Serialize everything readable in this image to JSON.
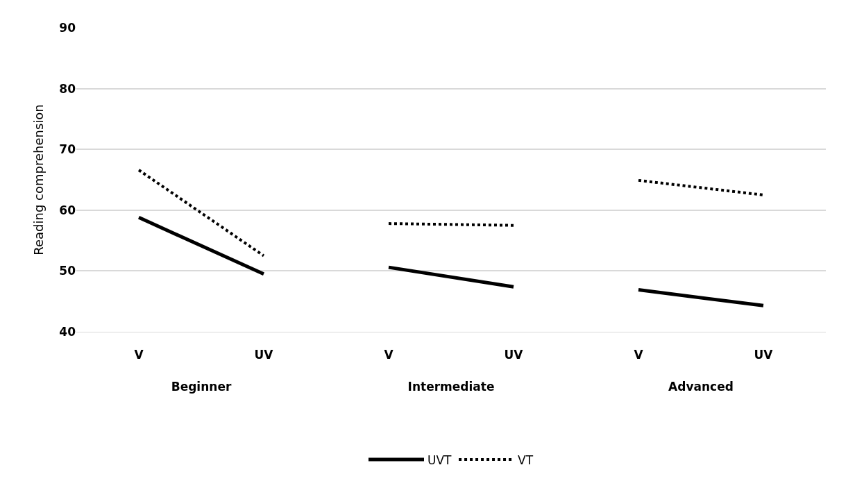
{
  "chart_data": [
    {
      "type": "line",
      "xlabel": "Beginner",
      "ylabel": "Reading comprehension",
      "categories": [
        "V",
        "UV"
      ],
      "ylim": [
        40,
        90
      ],
      "yticks": [
        40,
        50,
        60,
        70,
        80,
        90
      ],
      "grid": "y",
      "legend": "bottom",
      "marker": "none",
      "series": [
        {
          "name": "UVT",
          "color": "#000000",
          "line_style": "solid",
          "values": [
            58.8,
            49.5
          ]
        },
        {
          "name": "VT",
          "color": "#000000",
          "line_style": "dotted",
          "values": [
            66.6,
            52.5
          ]
        }
      ]
    },
    {
      "type": "line",
      "xlabel": "Intermediate",
      "categories": [
        "V",
        "UV"
      ],
      "ylim": [
        40,
        90
      ],
      "yticks": [
        40,
        50,
        60,
        70,
        80,
        90
      ],
      "grid": "y",
      "tick_labels": "x",
      "marker": "none",
      "series": [
        {
          "name": "UVT",
          "color": "#000000",
          "line_style": "solid",
          "values": [
            50.6,
            47.4
          ]
        },
        {
          "name": "VT",
          "color": "#000000",
          "line_style": "dotted",
          "values": [
            57.8,
            57.5
          ]
        }
      ]
    },
    {
      "type": "line",
      "xlabel": "Advanced",
      "categories": [
        "V",
        "UV"
      ],
      "ylim": [
        40,
        90
      ],
      "yticks": [
        40,
        50,
        60,
        70,
        80,
        90
      ],
      "grid": "y",
      "tick_labels": "x",
      "marker": "none",
      "series": [
        {
          "name": "UVT",
          "color": "#000000",
          "line_style": "solid",
          "values": [
            46.9,
            44.3
          ]
        },
        {
          "name": "VT",
          "color": "#000000",
          "line_style": "dotted",
          "values": [
            64.9,
            62.5
          ]
        }
      ]
    }
  ]
}
